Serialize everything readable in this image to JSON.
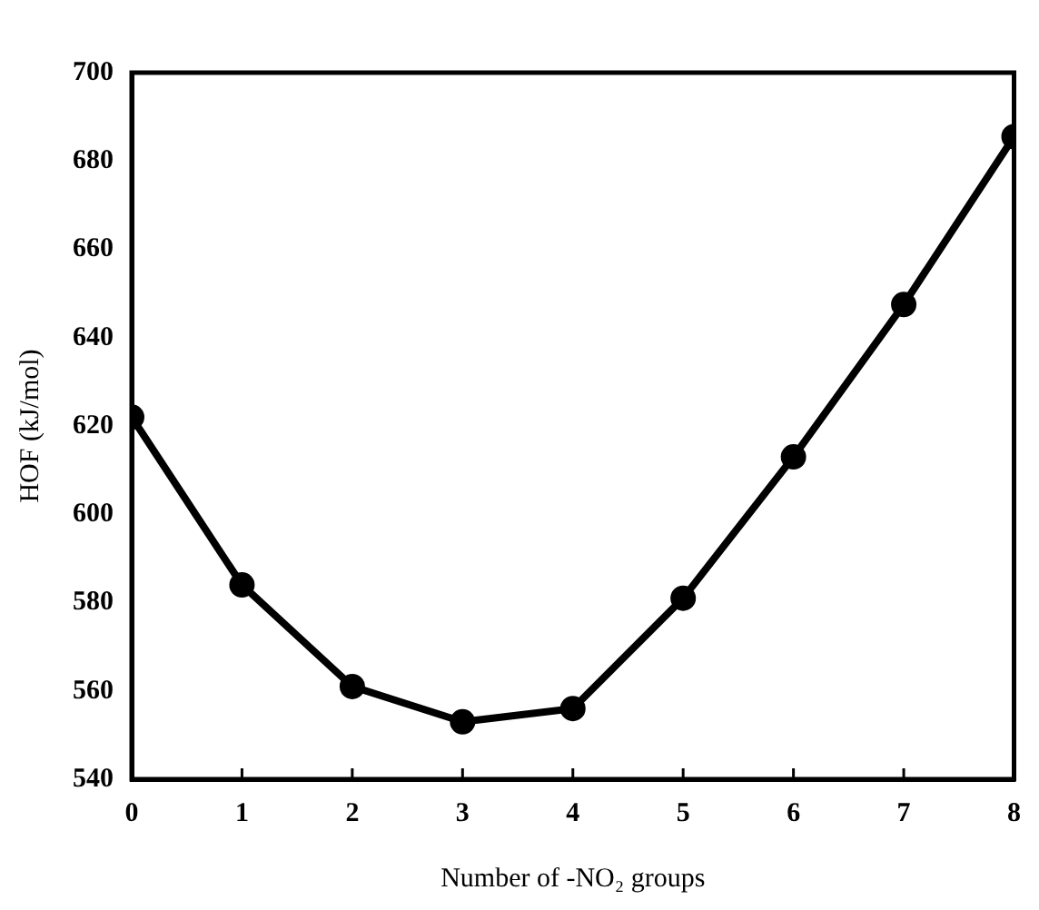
{
  "chart_data": {
    "type": "line",
    "xlabel": "Number of -NO₂ groups",
    "ylabel": "HOF (kJ/mol)",
    "x": [
      0,
      1,
      2,
      3,
      4,
      5,
      6,
      7,
      8
    ],
    "series": [
      {
        "color": "#000000",
        "values": [
          622,
          584,
          561,
          553,
          556,
          581,
          613,
          647.5,
          685.5
        ]
      }
    ],
    "xlim": [
      0,
      8
    ],
    "xticks": [
      0,
      1,
      2,
      3,
      4,
      5,
      6,
      7,
      8
    ],
    "ylim": [
      540,
      700
    ],
    "yticks": [
      540,
      560,
      580,
      600,
      620,
      640,
      660,
      680,
      700
    ],
    "grid": false,
    "legend": false,
    "marker": "circle",
    "line_style": "solid"
  }
}
